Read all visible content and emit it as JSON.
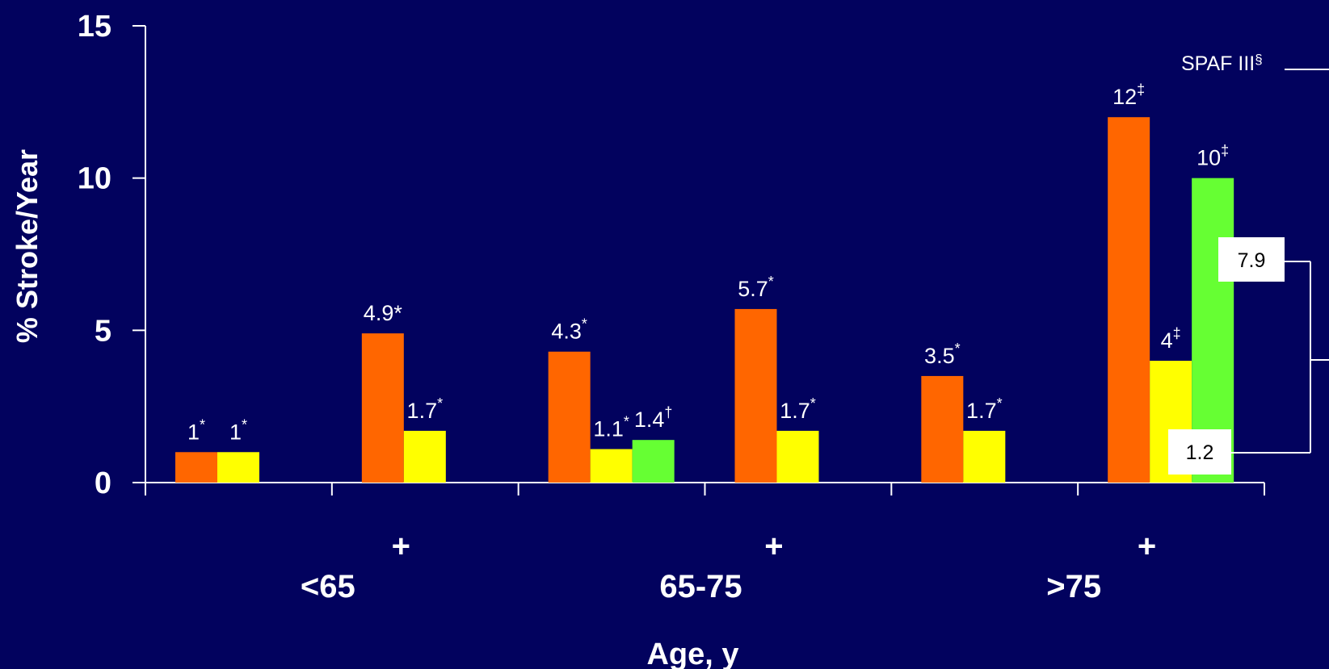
{
  "chart_data": {
    "type": "bar",
    "ylabel": "% Stroke/Year",
    "xlabel": "Age, y",
    "ylim": [
      0,
      15
    ],
    "yticks": [
      "0",
      "5",
      "10",
      "15"
    ],
    "group_labels": [
      "<65",
      "65-75",
      ">75"
    ],
    "plus_label": "+",
    "colors": {
      "orange": "#FF6600",
      "yellow": "#FFFF00",
      "green": "#66FF33",
      "axis": "#FFFFFF",
      "background": "#02025E"
    },
    "clusters": [
      {
        "bars": [
          {
            "color": "orange",
            "value": 1,
            "label": "1",
            "sup": "*"
          },
          {
            "color": "yellow",
            "value": 1,
            "label": "1",
            "sup": "*"
          }
        ]
      },
      {
        "bars": [
          {
            "color": "orange",
            "value": 4.9,
            "label": "4.9*",
            "sup": ""
          },
          {
            "color": "yellow",
            "value": 1.7,
            "label": "1.7",
            "sup": "*"
          }
        ]
      },
      {
        "bars": [
          {
            "color": "orange",
            "value": 4.3,
            "label": "4.3",
            "sup": "*"
          },
          {
            "color": "yellow",
            "value": 1.1,
            "label": "1.1",
            "sup": "*"
          },
          {
            "color": "green",
            "value": 1.4,
            "label": "1.4",
            "sup": "†"
          }
        ]
      },
      {
        "bars": [
          {
            "color": "orange",
            "value": 5.7,
            "label": "5.7",
            "sup": "*"
          },
          {
            "color": "yellow",
            "value": 1.7,
            "label": "1.7",
            "sup": "*"
          }
        ]
      },
      {
        "bars": [
          {
            "color": "orange",
            "value": 3.5,
            "label": "3.5",
            "sup": "*"
          },
          {
            "color": "yellow",
            "value": 1.7,
            "label": "1.7",
            "sup": "*"
          }
        ]
      },
      {
        "bars": [
          {
            "color": "orange",
            "value": 12,
            "label": "12",
            "sup": "‡"
          },
          {
            "color": "yellow",
            "value": 4,
            "label": "4",
            "sup": "‡"
          },
          {
            "color": "green",
            "value": 10,
            "label": "10",
            "sup": "‡"
          }
        ]
      }
    ],
    "annotations": {
      "spaf_text": "SPAF III",
      "spaf_sup": "§",
      "box_high": "7.9",
      "box_low": "1.2"
    }
  }
}
